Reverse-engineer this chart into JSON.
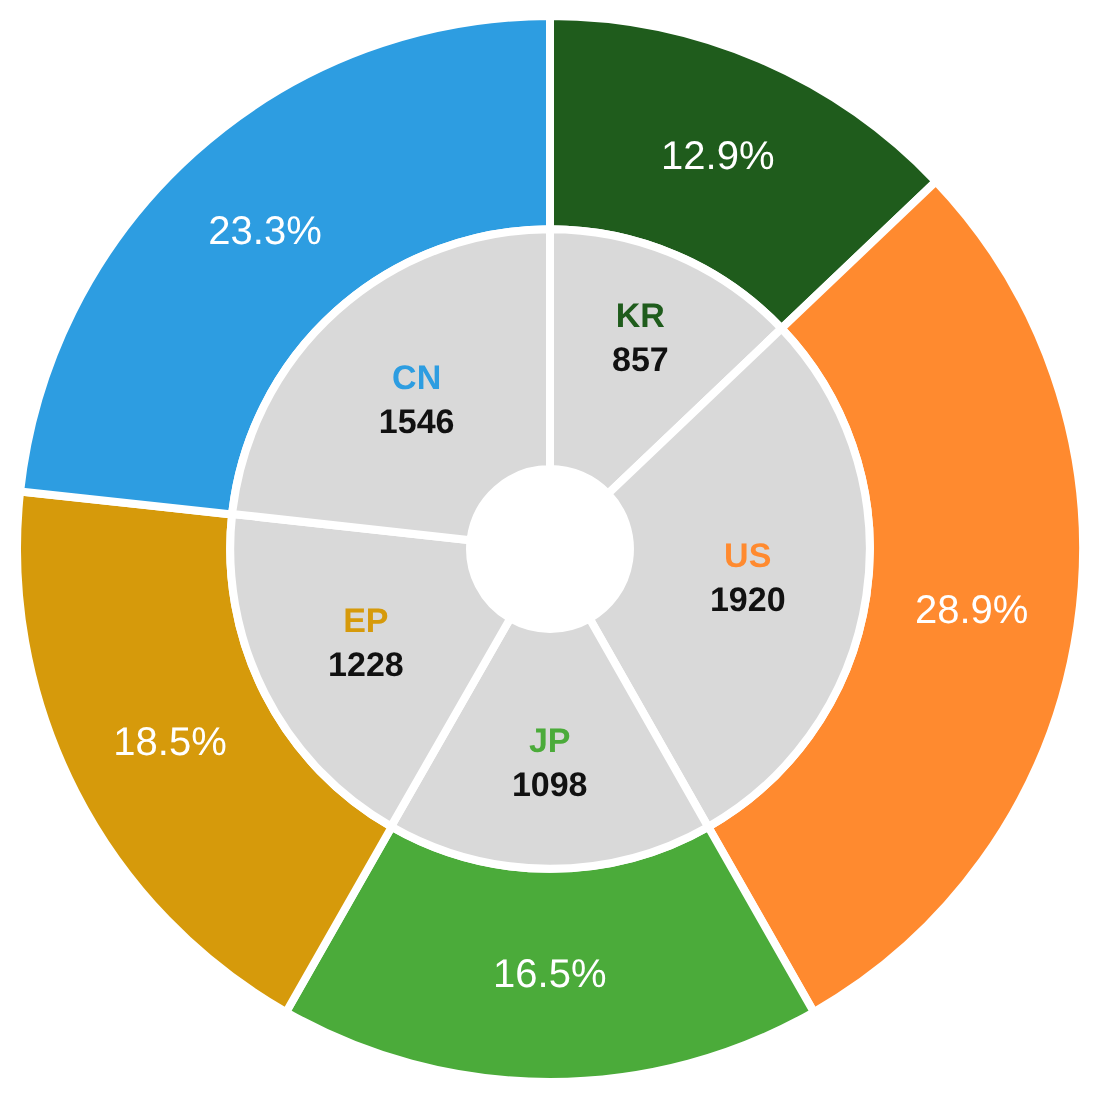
{
  "chart_data": {
    "type": "donut",
    "categories": [
      "KR",
      "US",
      "JP",
      "EP",
      "CN"
    ],
    "series": [
      {
        "values": [
          12.9,
          28.9,
          16.5,
          18.5,
          23.3
        ],
        "value_labels": [
          "12.9%",
          "28.9%",
          "16.5%",
          "18.5%",
          "23.3%"
        ],
        "colors": [
          "#1f5c1c",
          "#ff8a2f",
          "#4bab3a",
          "#d69a0b",
          "#2d9de1"
        ]
      },
      {
        "values": [
          857,
          1920,
          1098,
          1228,
          1546
        ],
        "value_labels": [
          "857",
          "1920",
          "1098",
          "1228",
          "1546"
        ],
        "color": "#d9d9d9"
      }
    ]
  }
}
